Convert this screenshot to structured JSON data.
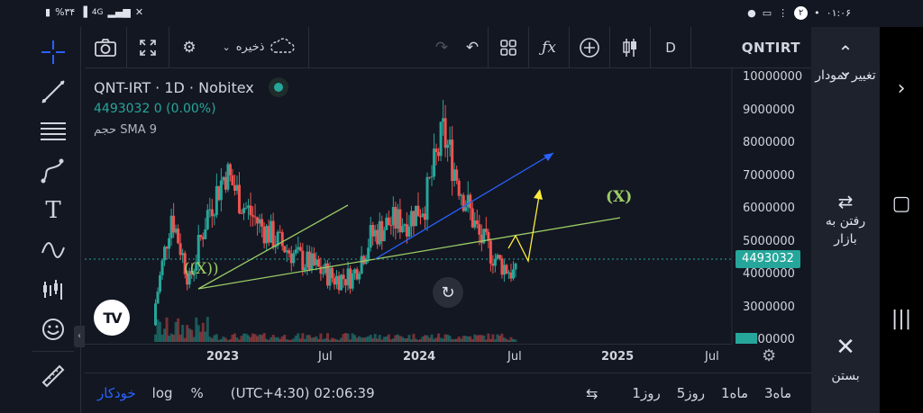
{
  "status_bar": {
    "battery": "%۳۴",
    "network": "4G",
    "time": "۰۱:۰۶",
    "notification_count": "۲"
  },
  "toolbar": {
    "save_label": "ذخیره",
    "interval": "D",
    "symbol": "QNTIRT"
  },
  "legend": {
    "title": "QNT-IRT · 1D · Nobitex",
    "price_line": "4493032  0 (0.00%)",
    "indicator": "حجم SMA 9"
  },
  "price_axis": {
    "ticks": [
      "10000000",
      "9000000",
      "8000000",
      "7000000",
      "6000000",
      "5000000",
      "4000000",
      "3000000",
      "0000000"
    ],
    "current_price": "4493032"
  },
  "time_axis": {
    "ticks": [
      {
        "label": "2023",
        "bold": true
      },
      {
        "label": "Jul",
        "bold": false
      },
      {
        "label": "2024",
        "bold": true
      },
      {
        "label": "Jul",
        "bold": false
      },
      {
        "label": "2025",
        "bold": true
      },
      {
        "label": "Jul",
        "bold": false
      }
    ]
  },
  "bottom_bar": {
    "auto": "خودکار",
    "log": "log",
    "percent": "%",
    "timezone_clock": "(UTC+4:30) 02:06:39",
    "ranges": [
      "1روز",
      "5روز",
      "1ماه",
      "3ماه"
    ]
  },
  "right_panel": {
    "change_chart": "تغییر نمودار",
    "go_to_market": "رفتن به بازار",
    "close": "بستن"
  },
  "annotations": {
    "label_left": "((X))",
    "label_right": "(X)"
  },
  "colors": {
    "background": "#131722",
    "up": "#26a69a",
    "down": "#ef5350",
    "trend_blue": "#2962ff",
    "trend_green": "#9ccc65",
    "trend_yellow": "#ffeb3b"
  },
  "chart_data": {
    "type": "candlestick",
    "symbol": "QNT-IRT",
    "interval": "1D",
    "ylim": [
      2500000,
      10500000
    ],
    "current_price": 4493032,
    "x": [
      "2022-11",
      "2022-12",
      "2023-01",
      "2023-02",
      "2023-03",
      "2023-04",
      "2023-05",
      "2023-06",
      "2023-07",
      "2023-08",
      "2023-09",
      "2023-10",
      "2023-11",
      "2023-12",
      "2024-01",
      "2024-02",
      "2024-03",
      "2024-04",
      "2024-05",
      "2024-06",
      "2024-07"
    ],
    "close": [
      3300000,
      6300000,
      4300000,
      6300000,
      7500000,
      6500000,
      5900000,
      5400000,
      5000000,
      4700000,
      4400000,
      4450000,
      5600000,
      6000000,
      6100000,
      6600000,
      8600000,
      7000000,
      5600000,
      4900000,
      4493032
    ]
  }
}
